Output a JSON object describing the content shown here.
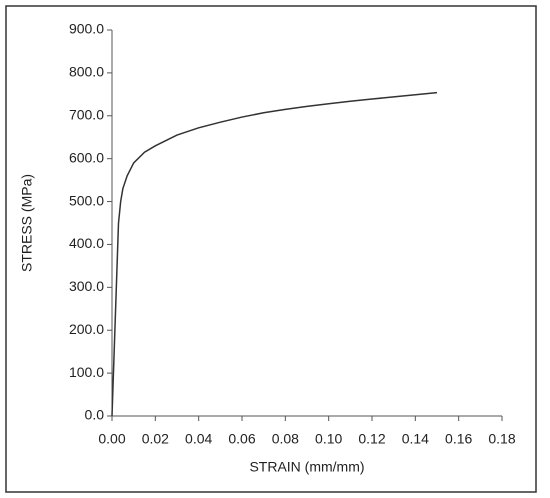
{
  "chart_data": {
    "type": "line",
    "x_label": "STRAIN (mm/mm)",
    "y_label": "STRESS (MPa)",
    "x": [
      0,
      0.002,
      0.003,
      0.004,
      0.005,
      0.007,
      0.01,
      0.015,
      0.02,
      0.03,
      0.04,
      0.05,
      0.06,
      0.07,
      0.08,
      0.09,
      0.1,
      0.11,
      0.12,
      0.13,
      0.14,
      0.15
    ],
    "series": [
      {
        "color": "#333333",
        "values": [
          0,
          300,
          450,
          500,
          530,
          560,
          590,
          615,
          630,
          655,
          672,
          685,
          697,
          707,
          715,
          722,
          728,
          734,
          739,
          744,
          749,
          754
        ]
      }
    ],
    "xlim": [
      0,
      0.18
    ],
    "xticks": [
      {
        "value": 0,
        "label": "0.00"
      },
      0.02,
      0.04,
      0.06,
      0.08,
      {
        "value": 0.1,
        "label": "0.10"
      },
      0.12,
      0.14,
      0.16,
      0.18
    ],
    "ylim": [
      0,
      900
    ],
    "yticks": [
      {
        "value": 0,
        "label": "0.0"
      },
      {
        "value": 100,
        "label": "100.0"
      },
      {
        "value": 200,
        "label": "200.0"
      },
      {
        "value": 300,
        "label": "300.0"
      },
      {
        "value": 400,
        "label": "400.0"
      },
      {
        "value": 500,
        "label": "500.0"
      },
      {
        "value": 600,
        "label": "600.0"
      },
      {
        "value": 700,
        "label": "700.0"
      },
      {
        "value": 800,
        "label": "800.0"
      },
      {
        "value": 900,
        "label": "900.0"
      }
    ],
    "grid": false
  }
}
